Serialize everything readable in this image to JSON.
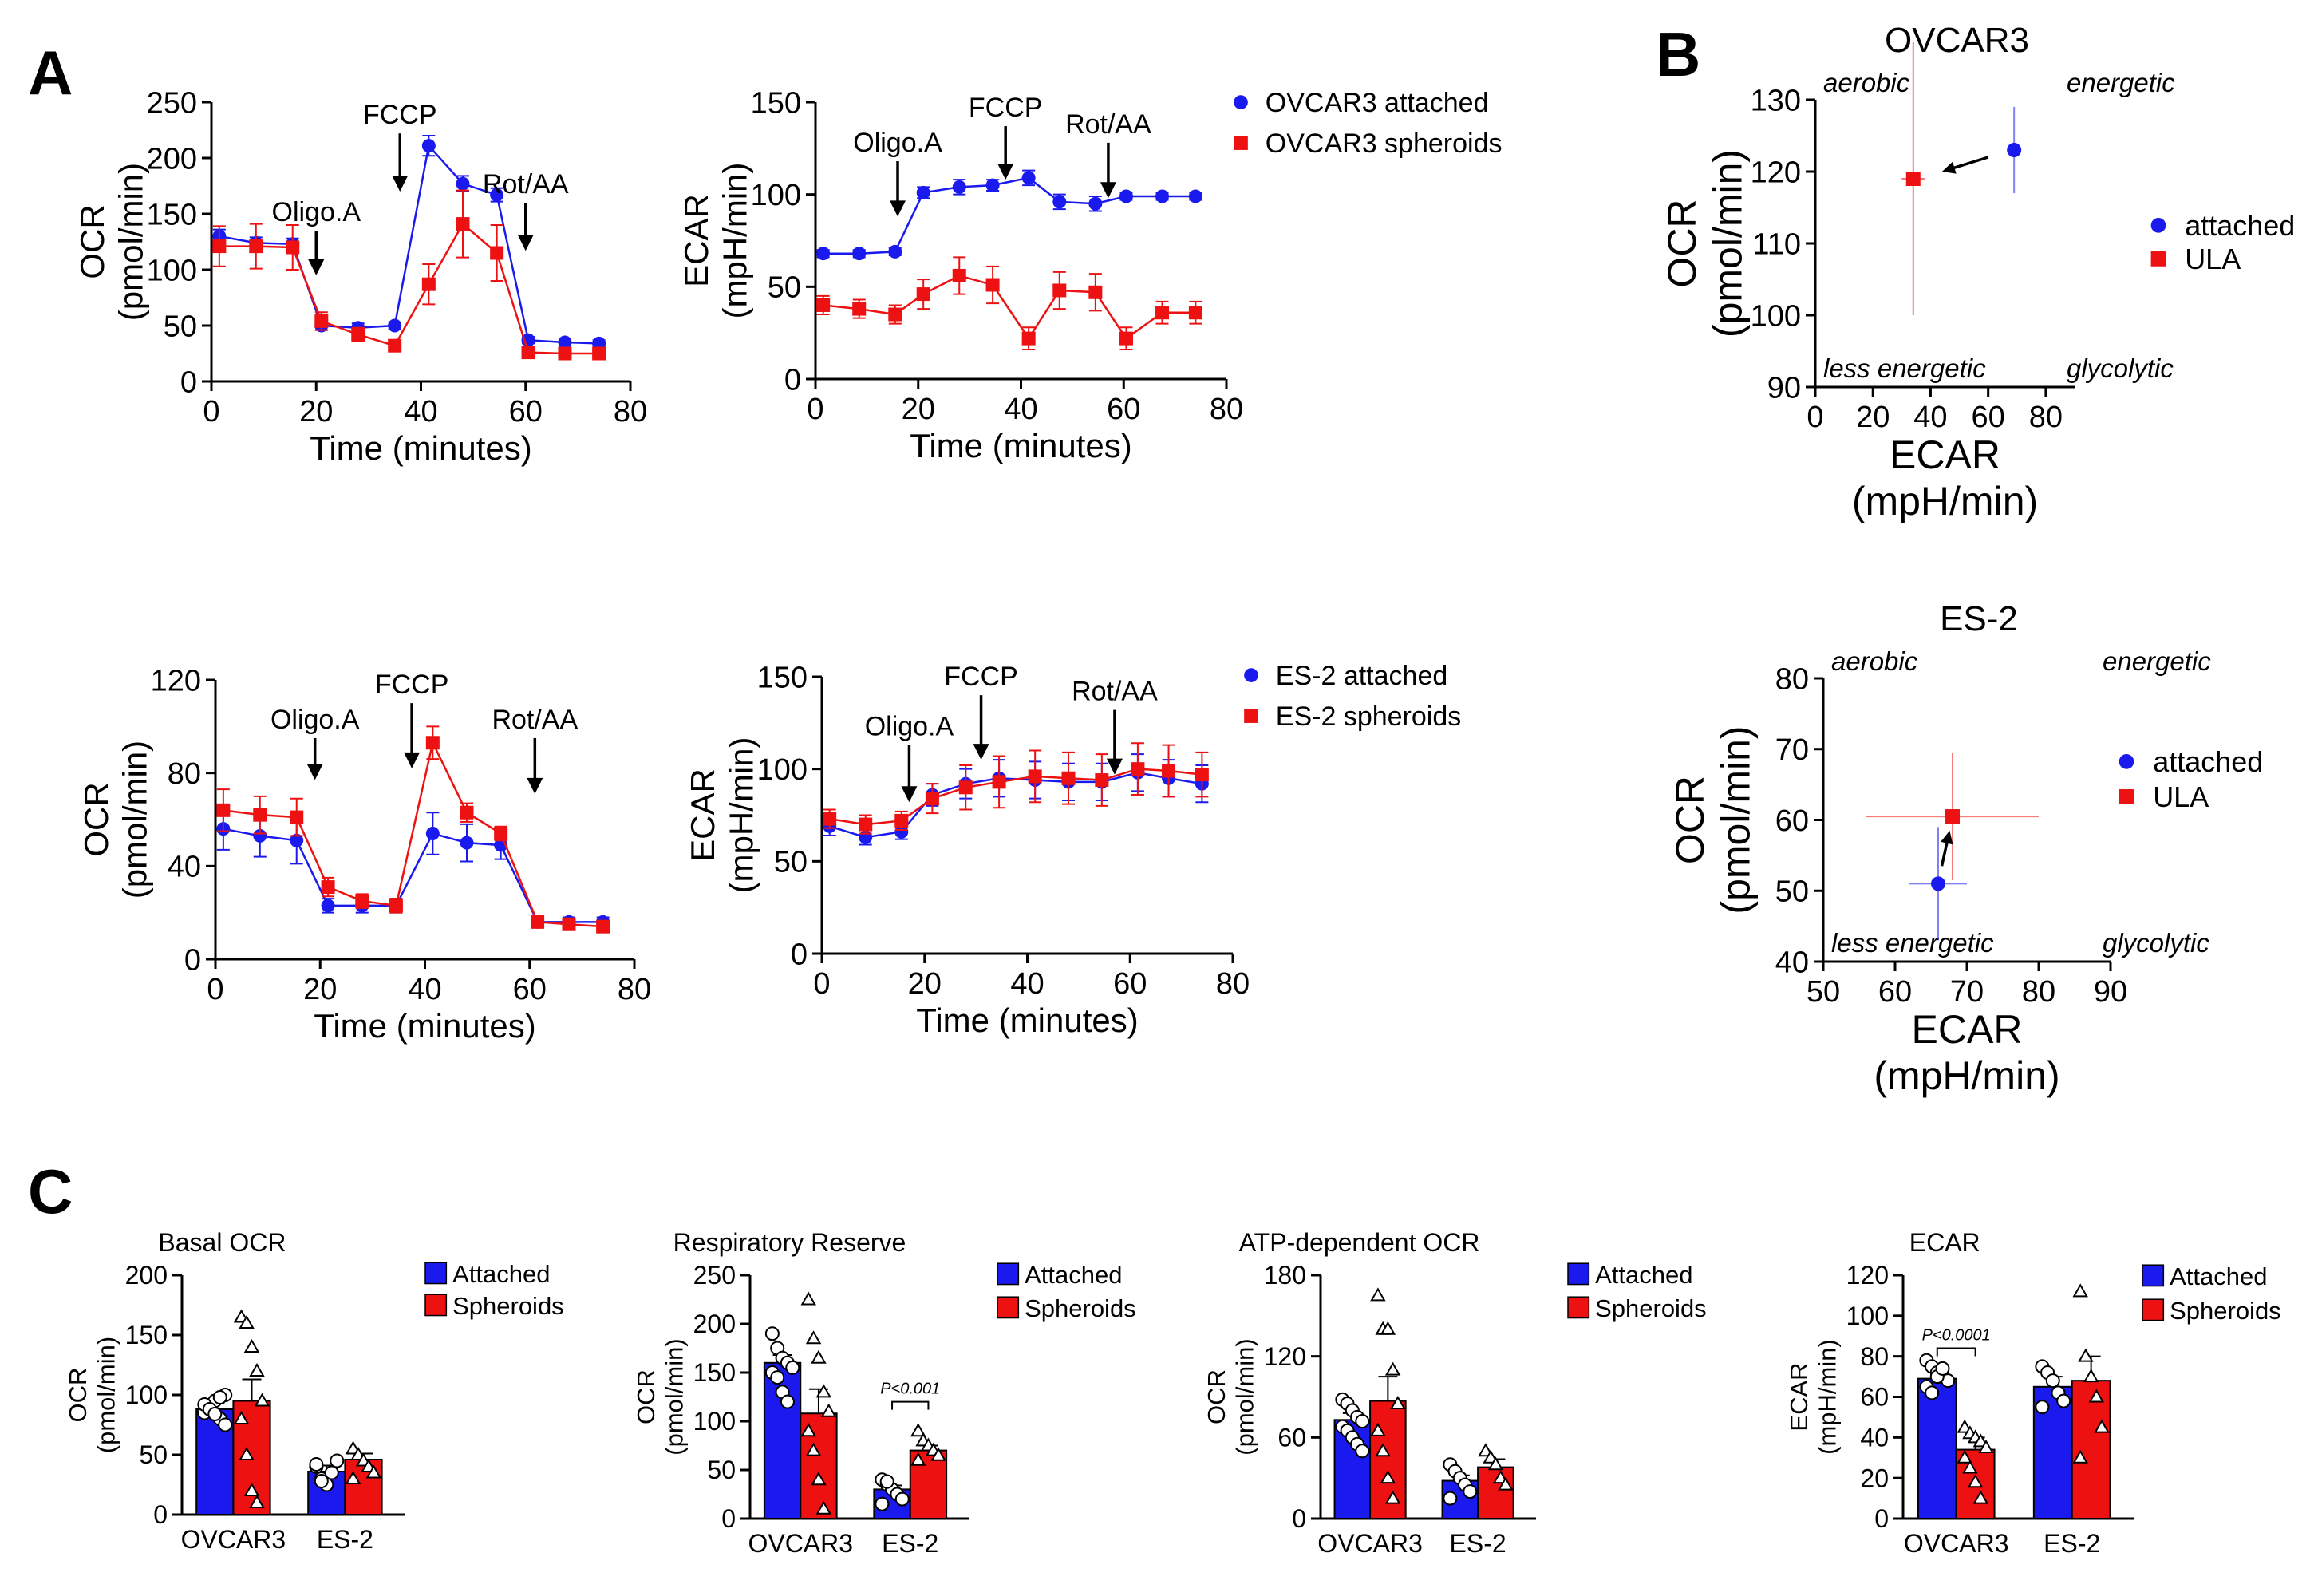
{
  "panels": {
    "A": "A",
    "B": "B",
    "C": "C"
  },
  "colors": {
    "attached": "#1a1aee",
    "spheroid": "#ee1111",
    "axis": "#000000"
  },
  "chart_data": [
    {
      "id": "a1",
      "type": "line",
      "title": "",
      "xlabel": "Time (minutes)",
      "ylabel": "OCR",
      "ylabel_unit": "(pmol/min)",
      "xlim": [
        0,
        80
      ],
      "ylim": [
        0,
        250
      ],
      "xticks": [
        0,
        20,
        40,
        60,
        80
      ],
      "yticks": [
        0,
        50,
        100,
        150,
        200,
        250
      ],
      "annotations": [
        {
          "text": "Oligo.A",
          "x": 20,
          "tip": 95,
          "tail": 135
        },
        {
          "text": "FCCP",
          "x": 36,
          "tip": 170,
          "tail": 222
        },
        {
          "text": "Rot/AA",
          "x": 60,
          "tip": 117,
          "tail": 160
        }
      ],
      "legend": null,
      "series": [
        {
          "name": "OVCAR3 attached",
          "color": "#1a1aee",
          "marker": "circle",
          "x": [
            1.5,
            8.5,
            15.5,
            21,
            28,
            35,
            41.5,
            48,
            54.5,
            60.5,
            67.5,
            74
          ],
          "y": [
            130,
            124,
            123,
            50,
            48,
            50,
            211,
            177,
            167,
            37,
            35,
            34
          ],
          "err": [
            6,
            5,
            5,
            4,
            4,
            3,
            9,
            7,
            6,
            3,
            3,
            3
          ]
        },
        {
          "name": "OVCAR3 spheroids",
          "color": "#ee1111",
          "marker": "square",
          "x": [
            1.5,
            8.5,
            15.5,
            21,
            28,
            35,
            41.5,
            48,
            54.5,
            60.5,
            67.5,
            74
          ],
          "y": [
            121,
            121,
            120,
            54,
            42,
            32,
            87,
            141,
            115,
            26,
            25,
            25
          ],
          "err": [
            18,
            20,
            20,
            8,
            6,
            4,
            18,
            30,
            25,
            5,
            5,
            5
          ]
        }
      ]
    },
    {
      "id": "a2",
      "type": "line",
      "title": "",
      "xlabel": "Time (minutes)",
      "ylabel": "ECAR",
      "ylabel_unit": "(mpH/min)",
      "xlim": [
        0,
        80
      ],
      "ylim": [
        0,
        150
      ],
      "xticks": [
        0,
        20,
        40,
        60,
        80
      ],
      "yticks": [
        0,
        50,
        100,
        150
      ],
      "annotations": [
        {
          "text": "Oligo.A",
          "x": 16,
          "tip": 88,
          "tail": 118
        },
        {
          "text": "FCCP",
          "x": 37,
          "tip": 108,
          "tail": 137
        },
        {
          "text": "Rot/AA",
          "x": 57,
          "tip": 98,
          "tail": 128
        }
      ],
      "legend": [
        "OVCAR3 attached",
        "OVCAR3 spheroids"
      ],
      "series": [
        {
          "name": "OVCAR3 attached",
          "color": "#1a1aee",
          "marker": "circle",
          "x": [
            1.5,
            8.5,
            15.5,
            21,
            28,
            34.5,
            41.5,
            47.5,
            54.5,
            60.5,
            67.5,
            74
          ],
          "y": [
            68,
            68,
            69,
            101,
            104,
            105,
            109,
            96,
            95,
            99,
            99,
            99
          ],
          "err": [
            2,
            2,
            2,
            3,
            4,
            3,
            4,
            4,
            4,
            2,
            2,
            2
          ]
        },
        {
          "name": "OVCAR3 spheroids",
          "color": "#ee1111",
          "marker": "square",
          "x": [
            1.5,
            8.5,
            15.5,
            21,
            28,
            34.5,
            41.5,
            47.5,
            54.5,
            60.5,
            67.5,
            74
          ],
          "y": [
            40,
            38,
            35,
            46,
            56,
            51,
            22,
            48,
            47,
            22,
            36,
            36
          ],
          "err": [
            5,
            5,
            5,
            8,
            10,
            10,
            6,
            10,
            10,
            6,
            6,
            6
          ]
        }
      ]
    },
    {
      "id": "a3",
      "type": "line",
      "title": "",
      "xlabel": "Time (minutes)",
      "ylabel": "OCR",
      "ylabel_unit": "(pmol/min)",
      "xlim": [
        0,
        80
      ],
      "ylim": [
        0,
        120
      ],
      "xticks": [
        0,
        20,
        40,
        60,
        80
      ],
      "yticks": [
        0,
        40,
        80,
        120
      ],
      "annotations": [
        {
          "text": "Oligo.A",
          "x": 19,
          "tip": 77,
          "tail": 95
        },
        {
          "text": "FCCP",
          "x": 37.5,
          "tip": 82,
          "tail": 110
        },
        {
          "text": "Rot/AA",
          "x": 61,
          "tip": 71,
          "tail": 95
        }
      ],
      "legend": null,
      "series": [
        {
          "name": "ES-2 attached",
          "color": "#1a1aee",
          "marker": "circle",
          "x": [
            1.5,
            8.5,
            15.5,
            21.5,
            28,
            34.5,
            41.5,
            48,
            54.5,
            61.5,
            67.5,
            74
          ],
          "y": [
            56,
            53,
            51,
            23,
            23,
            23,
            54,
            50,
            49,
            16,
            16,
            16
          ],
          "err": [
            9,
            9,
            10,
            3,
            3,
            3,
            9,
            8,
            6,
            2,
            2,
            2
          ]
        },
        {
          "name": "ES-2 spheroids",
          "color": "#ee1111",
          "marker": "square",
          "x": [
            1.5,
            8.5,
            15.5,
            21.5,
            28,
            34.5,
            41.5,
            48,
            54.5,
            61.5,
            67.5,
            74
          ],
          "y": [
            64,
            62,
            61,
            31,
            25,
            23,
            93,
            63,
            54,
            16,
            15,
            14
          ],
          "err": [
            9,
            8,
            8,
            4,
            3,
            3,
            7,
            4,
            3,
            2,
            2,
            2
          ]
        }
      ]
    },
    {
      "id": "a4",
      "type": "line",
      "title": "",
      "xlabel": "Time (minutes)",
      "ylabel": "ECAR",
      "ylabel_unit": "(mpH/min)",
      "xlim": [
        0,
        80
      ],
      "ylim": [
        0,
        150
      ],
      "xticks": [
        0,
        20,
        40,
        60,
        80
      ],
      "yticks": [
        0,
        50,
        100,
        150
      ],
      "annotations": [
        {
          "text": "Oligo.A",
          "x": 17,
          "tip": 82,
          "tail": 113
        },
        {
          "text": "FCCP",
          "x": 31,
          "tip": 105,
          "tail": 140
        },
        {
          "text": "Rot/AA",
          "x": 57,
          "tip": 97,
          "tail": 132
        }
      ],
      "legend": [
        "ES-2 attached",
        "ES-2 spheroids"
      ],
      "series": [
        {
          "name": "ES-2 attached",
          "color": "#1a1aee",
          "marker": "circle",
          "x": [
            1.5,
            8.5,
            15.5,
            21.5,
            28,
            34.5,
            41.5,
            48,
            54.5,
            61.5,
            67.5,
            74
          ],
          "y": [
            69,
            63,
            66,
            86,
            92,
            95,
            94,
            93,
            93,
            98,
            95,
            92
          ],
          "err": [
            5,
            4,
            4,
            6,
            8,
            10,
            10,
            10,
            10,
            10,
            10,
            10
          ]
        },
        {
          "name": "ES-2 spheroids",
          "color": "#ee1111",
          "marker": "square",
          "x": [
            1.5,
            8.5,
            15.5,
            21.5,
            28,
            34.5,
            41.5,
            48,
            54.5,
            61.5,
            67.5,
            74
          ],
          "y": [
            73,
            70,
            72,
            84,
            90,
            93,
            96,
            95,
            94,
            100,
            99,
            97
          ],
          "err": [
            5,
            5,
            5,
            8,
            12,
            14,
            14,
            14,
            14,
            14,
            14,
            12
          ]
        }
      ]
    },
    {
      "id": "b1",
      "type": "scatter",
      "title": "OVCAR3",
      "xlabel": "ECAR",
      "xlabel_unit": "(mpH/min)",
      "ylabel": "OCR",
      "ylabel_unit": "(pmol/min)",
      "xlim": [
        0,
        90
      ],
      "ylim": [
        90,
        130
      ],
      "xticks": [
        0,
        20,
        40,
        60,
        80
      ],
      "yticks": [
        90,
        100,
        110,
        120,
        130
      ],
      "quadrants": {
        "tl": "aerobic",
        "tr": "energetic",
        "bl": "less energetic",
        "br": "glycolytic"
      },
      "legend": [
        "attached",
        "ULA"
      ],
      "points": [
        {
          "name": "attached",
          "color": "#1a1aee",
          "marker": "circle",
          "x": 69,
          "y": 123,
          "xerr": 0,
          "yerr": 6
        },
        {
          "name": "ULA",
          "color": "#ee1111",
          "marker": "square",
          "x": 34,
          "y": 119,
          "xerr": 4,
          "yerr": 19
        }
      ],
      "arrow": {
        "from": [
          60,
          122
        ],
        "to": [
          44,
          120
        ]
      }
    },
    {
      "id": "b2",
      "type": "scatter",
      "title": "ES-2",
      "xlabel": "ECAR",
      "xlabel_unit": "(mpH/min)",
      "ylabel": "OCR",
      "ylabel_unit": "(pmol/min)",
      "xlim": [
        50,
        90
      ],
      "ylim": [
        40,
        80
      ],
      "xticks": [
        50,
        60,
        70,
        80,
        90
      ],
      "yticks": [
        40,
        50,
        60,
        70,
        80
      ],
      "quadrants": {
        "tl": "aerobic",
        "tr": "energetic",
        "bl": "less energetic",
        "br": "glycolytic"
      },
      "legend": [
        "attached",
        "ULA"
      ],
      "points": [
        {
          "name": "attached",
          "color": "#1a1aee",
          "marker": "circle",
          "x": 66,
          "y": 51,
          "xerr": 4,
          "yerr": 8
        },
        {
          "name": "ULA",
          "color": "#ee1111",
          "marker": "square",
          "x": 68,
          "y": 60.5,
          "xerr": 12,
          "yerr": 9
        }
      ],
      "arrow": {
        "from": [
          66.5,
          53.5
        ],
        "to": [
          67.6,
          58.5
        ]
      }
    },
    {
      "id": "c1",
      "type": "bar",
      "title": "Basal OCR",
      "ylabel": "OCR",
      "ylabel_unit": "(pmol/min)",
      "categories": [
        "OVCAR3",
        "ES-2"
      ],
      "ylim": [
        0,
        200
      ],
      "yticks": [
        0,
        50,
        100,
        150,
        200
      ],
      "legend": [
        "Attached",
        "Spheroids"
      ],
      "series": [
        {
          "name": "Attached",
          "color": "#1a1aee",
          "values": [
            88,
            36
          ],
          "err": [
            5,
            5
          ],
          "points": [
            [
              85,
              90,
              95,
              80,
              100,
              92,
              88,
              84,
              98,
              75
            ],
            [
              40,
              30,
              25,
              35,
              45,
              42,
              28
            ]
          ]
        },
        {
          "name": "Spheroids",
          "color": "#ee1111",
          "values": [
            95,
            46
          ],
          "err": [
            18,
            5
          ],
          "points": [
            [
              165,
              160,
              140,
              120,
              95,
              80,
              50,
              20,
              10
            ],
            [
              55,
              50,
              45,
              40,
              35,
              30
            ]
          ]
        }
      ],
      "significance": null
    },
    {
      "id": "c2",
      "type": "bar",
      "title": "Respiratory Reserve",
      "ylabel": "OCR",
      "ylabel_unit": "(pmol/min)",
      "categories": [
        "OVCAR3",
        "ES-2"
      ],
      "ylim": [
        0,
        250
      ],
      "yticks": [
        0,
        50,
        100,
        150,
        200,
        250
      ],
      "legend": [
        "Attached",
        "Spheroids"
      ],
      "series": [
        {
          "name": "Attached",
          "color": "#1a1aee",
          "values": [
            160,
            30
          ],
          "err": [
            8,
            4
          ],
          "points": [
            [
              190,
              175,
              165,
              160,
              155,
              150,
              145,
              130,
              120
            ],
            [
              40,
              35,
              30,
              25,
              20,
              15,
              38
            ]
          ]
        },
        {
          "name": "Spheroids",
          "color": "#ee1111",
          "values": [
            108,
            70
          ],
          "err": [
            25,
            5
          ],
          "points": [
            [
              225,
              185,
              165,
              130,
              110,
              90,
              70,
              40,
              10
            ],
            [
              90,
              80,
              75,
              70,
              65,
              60
            ]
          ]
        }
      ],
      "significance": {
        "category": 1,
        "text": "P<0.001",
        "y": 120
      }
    },
    {
      "id": "c3",
      "type": "bar",
      "title": "ATP-dependent OCR",
      "ylabel": "OCR",
      "ylabel_unit": "(pmol/min)",
      "categories": [
        "OVCAR3",
        "ES-2"
      ],
      "ylim": [
        0,
        180
      ],
      "yticks": [
        0,
        60,
        120,
        180
      ],
      "legend": [
        "Attached",
        "Spheroids"
      ],
      "series": [
        {
          "name": "Attached",
          "color": "#1a1aee",
          "values": [
            73,
            28
          ],
          "err": [
            5,
            4
          ],
          "points": [
            [
              88,
              85,
              80,
              75,
              72,
              68,
              65,
              60,
              55,
              50
            ],
            [
              40,
              35,
              30,
              25,
              20,
              15
            ]
          ]
        },
        {
          "name": "Spheroids",
          "color": "#ee1111",
          "values": [
            87,
            38
          ],
          "err": [
            18,
            6
          ],
          "points": [
            [
              165,
              140,
              140,
              110,
              85,
              65,
              50,
              30,
              15
            ],
            [
              50,
              45,
              40,
              30,
              25
            ]
          ]
        }
      ],
      "significance": null
    },
    {
      "id": "c4",
      "type": "bar",
      "title": "ECAR",
      "ylabel": "ECAR",
      "ylabel_unit": "(mpH/min)",
      "categories": [
        "OVCAR3",
        "ES-2"
      ],
      "ylim": [
        0,
        120
      ],
      "yticks": [
        0,
        20,
        40,
        60,
        80,
        100,
        120
      ],
      "legend": [
        "Attached",
        "Spheroids"
      ],
      "series": [
        {
          "name": "Attached",
          "color": "#1a1aee",
          "values": [
            69,
            65
          ],
          "err": [
            3,
            5
          ],
          "points": [
            [
              78,
              75,
              72,
              70,
              68,
              65,
              62,
              70,
              74
            ],
            [
              75,
              72,
              68,
              62,
              58,
              55
            ]
          ]
        },
        {
          "name": "Spheroids",
          "color": "#ee1111",
          "values": [
            34,
            68
          ],
          "err": [
            6,
            12
          ],
          "points": [
            [
              45,
              42,
              40,
              38,
              35,
              30,
              25,
              18,
              10
            ],
            [
              112,
              80,
              70,
              60,
              45,
              30
            ]
          ]
        }
      ],
      "significance": {
        "category": 0,
        "text": "P<0.0001",
        "y": 84
      }
    }
  ]
}
